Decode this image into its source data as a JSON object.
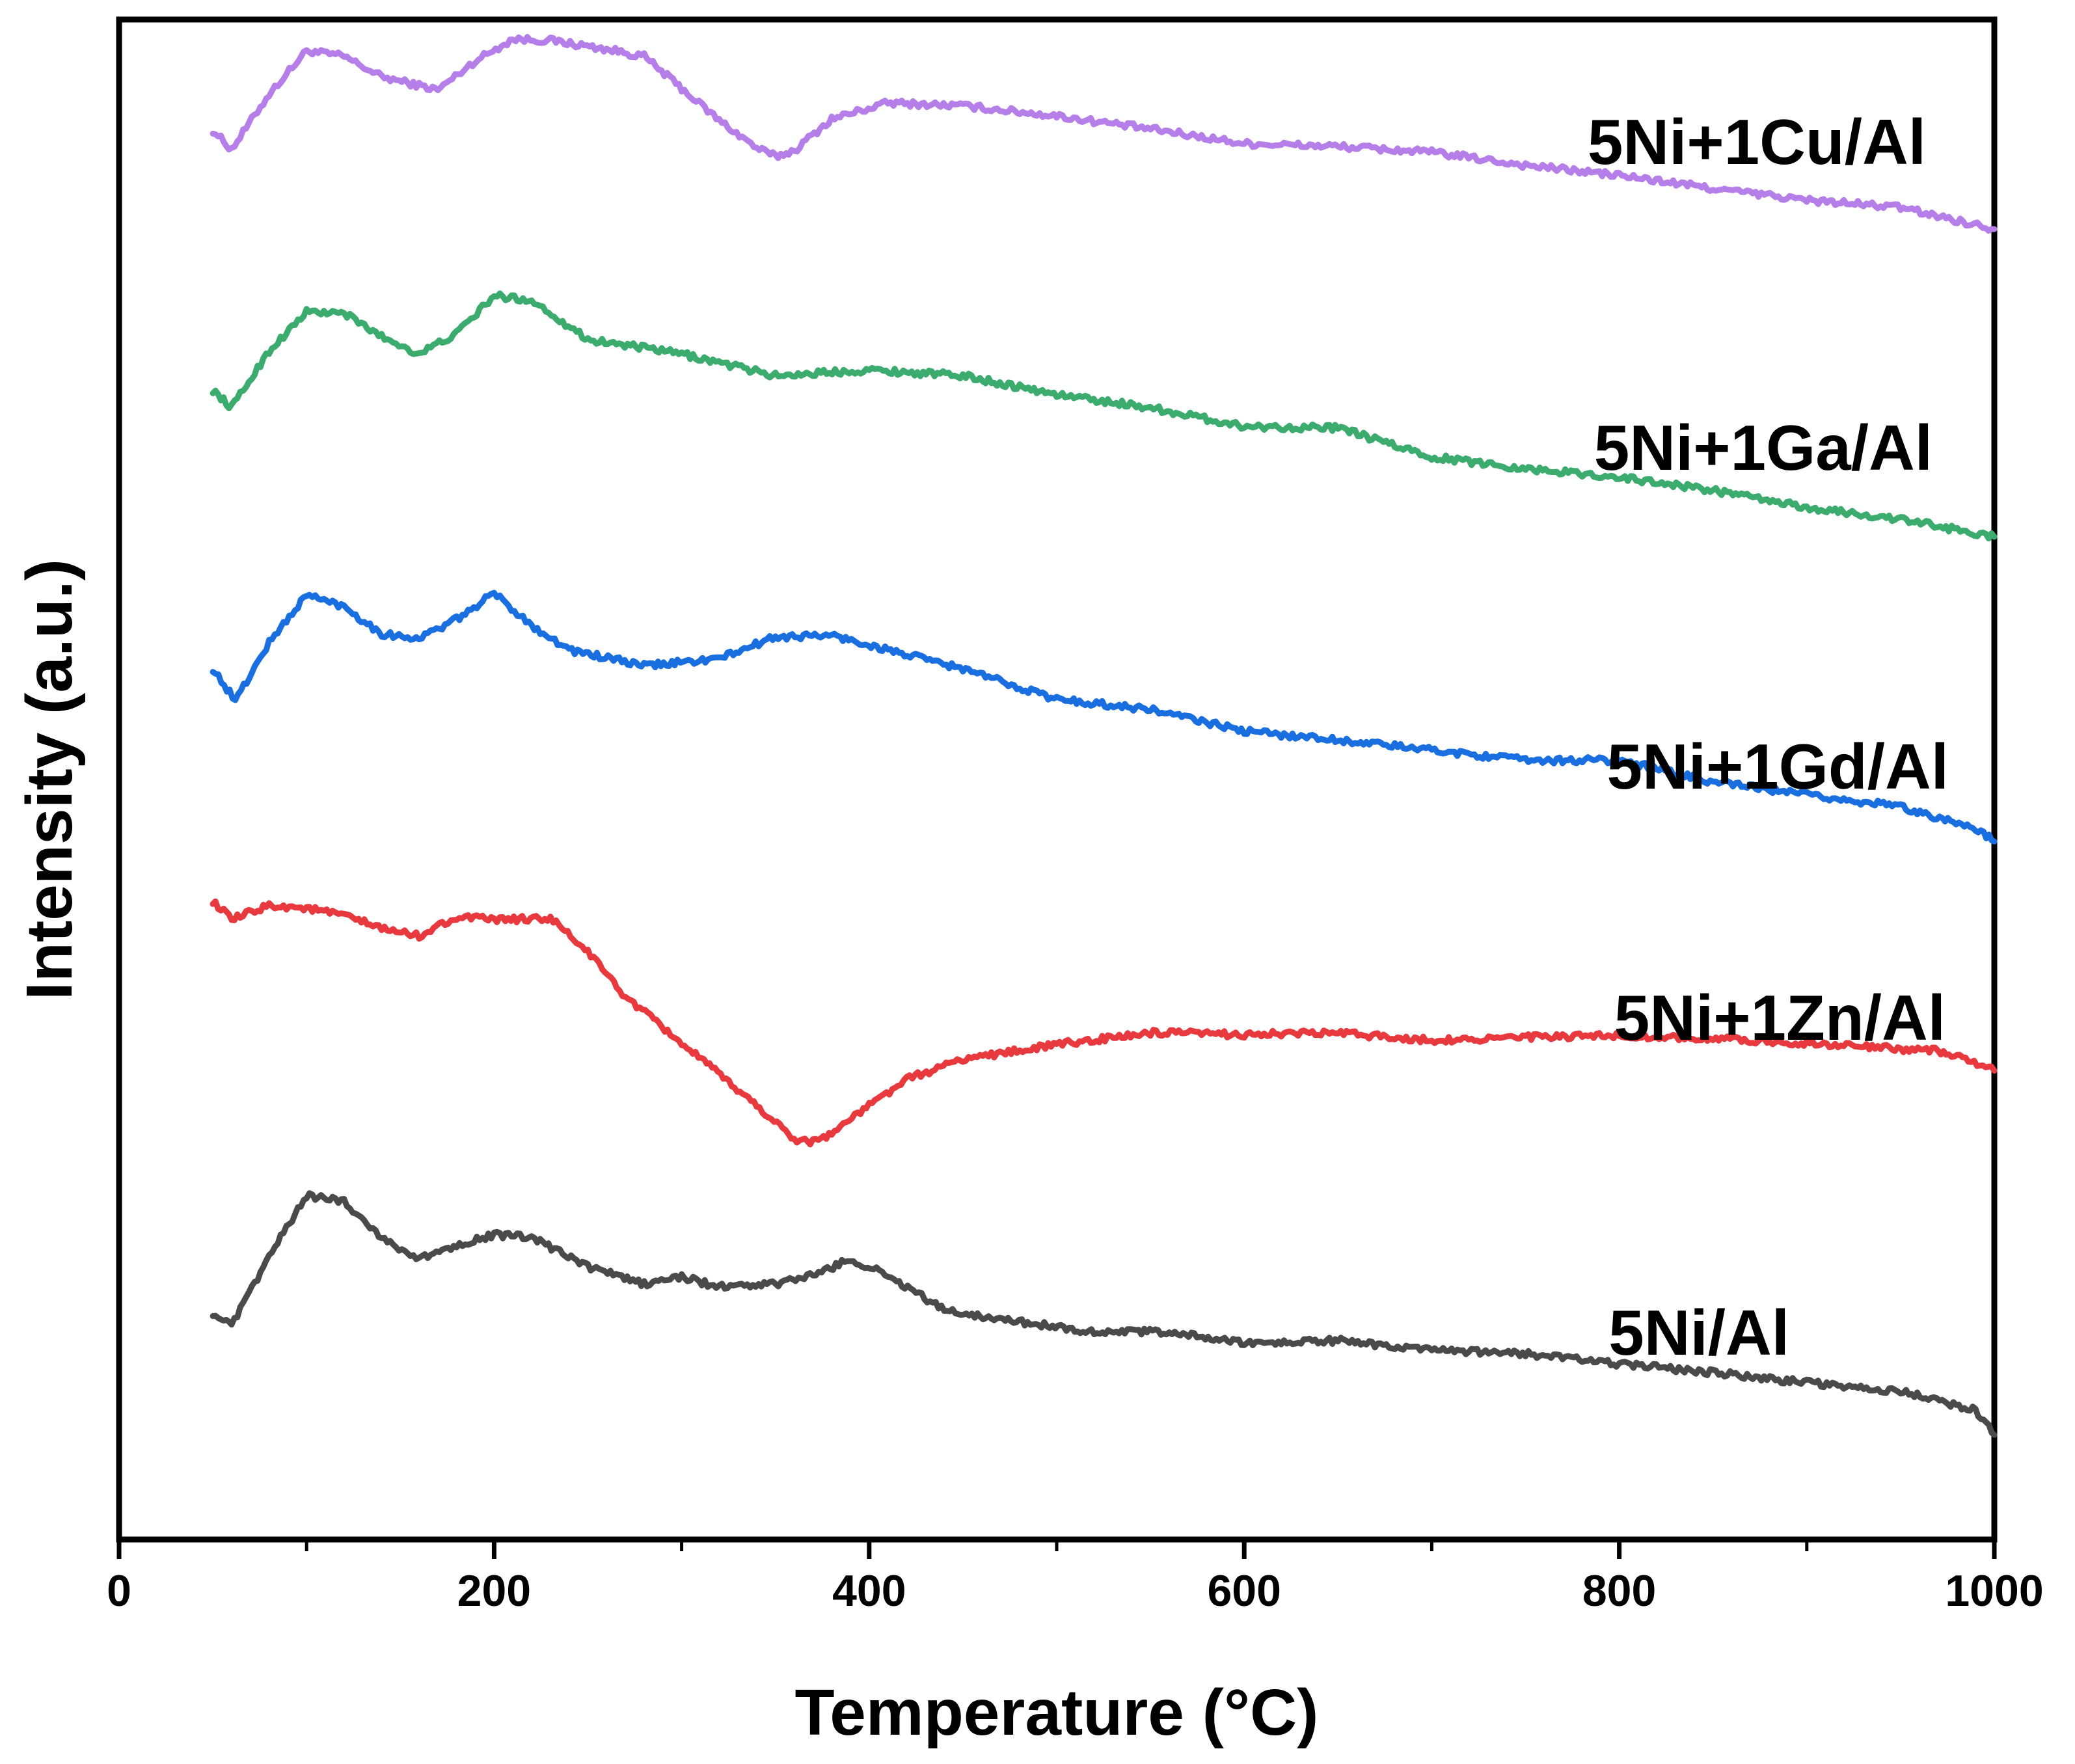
{
  "chart_data": {
    "type": "line",
    "title": "",
    "xlabel": "Temperature (°C)",
    "ylabel": "Intensity (a.u.)",
    "xlim": [
      0,
      1000
    ],
    "ylim": [
      0,
      100
    ],
    "grid": false,
    "legend": "inline labels at right of each curve",
    "xticks": [
      0,
      200,
      400,
      600,
      800,
      1000
    ],
    "xtick_labels": [
      "0",
      "200",
      "400",
      "600",
      "800",
      "1000"
    ],
    "series": [
      {
        "name": "5Ni+1Cu/Al",
        "color": "#b57ee8",
        "x": [
          50,
          60,
          80,
          100,
          120,
          140,
          160,
          170,
          190,
          210,
          230,
          260,
          280,
          300,
          320,
          340,
          350,
          360,
          380,
          410,
          450,
          500,
          550,
          600,
          650,
          700,
          750,
          800,
          850,
          900,
          950,
          1000
        ],
        "y": [
          93.7,
          92.4,
          96.2,
          99.2,
          98.8,
          97.4,
          96.8,
          96.5,
          98.5,
          100.0,
          99.9,
          99.3,
          98.8,
          96.6,
          94.4,
          92.5,
          91.9,
          92.3,
          94.5,
          95.6,
          95.4,
          94.7,
          93.8,
          92.8,
          92.6,
          92.2,
          91.3,
          90.6,
          89.7,
          88.9,
          88.4,
          86.9
        ]
      },
      {
        "name": "5Ni+1Ga/Al",
        "color": "#3cab6e",
        "x": [
          50,
          60,
          80,
          100,
          120,
          140,
          160,
          180,
          200,
          220,
          250,
          300,
          350,
          400,
          450,
          500,
          550,
          600,
          650,
          700,
          750,
          800,
          850,
          900,
          950,
          1000
        ],
        "y": [
          75.8,
          74.6,
          78.5,
          81.2,
          81.1,
          79.5,
          78.3,
          79.7,
          82.3,
          82.0,
          79.3,
          78.3,
          76.8,
          77.2,
          76.8,
          75.5,
          74.6,
          73.3,
          73.2,
          71.2,
          70.4,
          69.8,
          68.9,
          67.7,
          66.9,
          65.7
        ]
      },
      {
        "name": "5Ni+1Gd/Al",
        "color": "#1a6fe0",
        "x": [
          50,
          62,
          80,
          100,
          120,
          140,
          160,
          180,
          200,
          220,
          240,
          280,
          320,
          350,
          380,
          410,
          450,
          500,
          550,
          600,
          650,
          700,
          750,
          800,
          850,
          900,
          950,
          990,
          1000
        ],
        "y": [
          56.6,
          54.4,
          58.4,
          61.7,
          60.9,
          59.0,
          58.7,
          60.0,
          61.8,
          59.6,
          57.9,
          56.8,
          57.3,
          58.8,
          58.9,
          57.9,
          56.6,
          54.5,
          53.8,
          52.3,
          51.7,
          51.0,
          50.3,
          50.3,
          48.8,
          47.9,
          47.1,
          45.6,
          44.7
        ]
      },
      {
        "name": "5Ni+1Zn/Al",
        "color": "#e8393f",
        "x": [
          50,
          60,
          80,
          100,
          120,
          140,
          160,
          180,
          200,
          230,
          250,
          270,
          300,
          340,
          360,
          370,
          380,
          400,
          420,
          450,
          500,
          550,
          600,
          650,
          700,
          750,
          800,
          850,
          900,
          950,
          970,
          980,
          1000
        ],
        "y": [
          40.6,
          39.3,
          40.3,
          40.1,
          39.6,
          38.7,
          38.2,
          39.5,
          39.3,
          39.4,
          37.1,
          34.0,
          30.8,
          26.5,
          24.2,
          24.0,
          24.6,
          26.5,
          28.3,
          29.7,
          30.7,
          31.5,
          31.4,
          31.5,
          31.0,
          31.2,
          31.3,
          31.1,
          30.8,
          30.4,
          30.3,
          29.9,
          28.9
        ]
      },
      {
        "name": "5Ni/Al",
        "color": "#4a4a4a",
        "x": [
          50,
          60,
          80,
          100,
          120,
          140,
          160,
          180,
          200,
          220,
          250,
          280,
          300,
          320,
          350,
          370,
          390,
          410,
          440,
          480,
          520,
          560,
          600,
          650,
          700,
          750,
          800,
          850,
          900,
          950,
          990,
          1000
        ],
        "y": [
          12.2,
          11.3,
          16.1,
          20.3,
          19.9,
          17.4,
          15.9,
          16.9,
          17.6,
          17.4,
          15.4,
          14.2,
          14.7,
          14.0,
          14.2,
          14.8,
          15.9,
          14.8,
          12.4,
          11.6,
          10.9,
          10.9,
          10.1,
          10.3,
          9.6,
          9.4,
          8.7,
          8.1,
          7.4,
          6.8,
          5.5,
          3.8
        ]
      }
    ]
  }
}
